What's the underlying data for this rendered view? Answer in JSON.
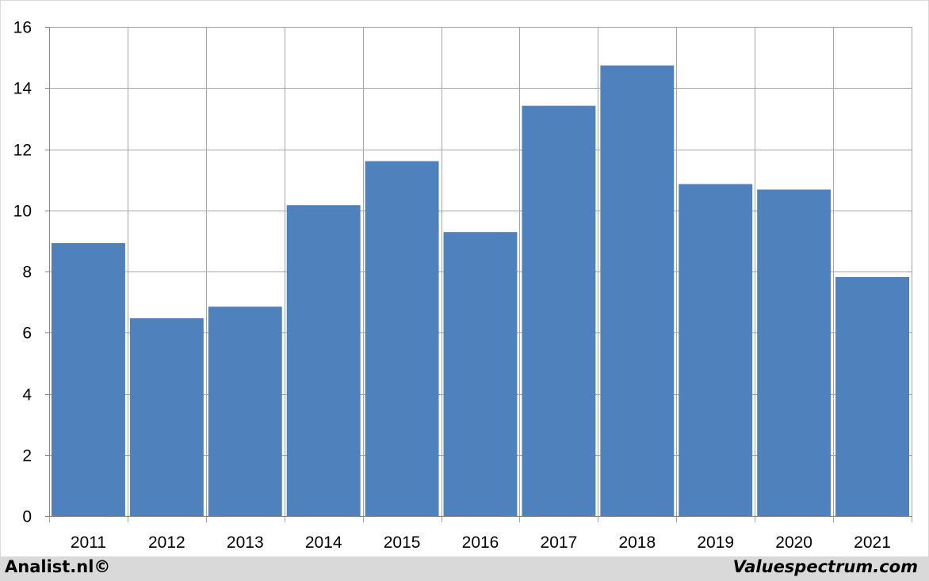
{
  "chart_data": {
    "type": "bar",
    "categories": [
      "2011",
      "2012",
      "2013",
      "2014",
      "2015",
      "2016",
      "2017",
      "2018",
      "2019",
      "2020",
      "2021"
    ],
    "values": [
      8.93,
      6.47,
      6.85,
      10.17,
      11.61,
      9.29,
      13.42,
      14.74,
      10.86,
      10.68,
      7.82
    ],
    "ylim": [
      0,
      16
    ],
    "yticks": [
      0,
      2,
      4,
      6,
      8,
      10,
      12,
      14,
      16
    ],
    "grid": true,
    "bar_color": "#4f81bd",
    "title": "",
    "xlabel": "",
    "ylabel": ""
  },
  "footer": {
    "left_text": "Analist.nl©",
    "right_text": "Valuespectrum.com"
  }
}
